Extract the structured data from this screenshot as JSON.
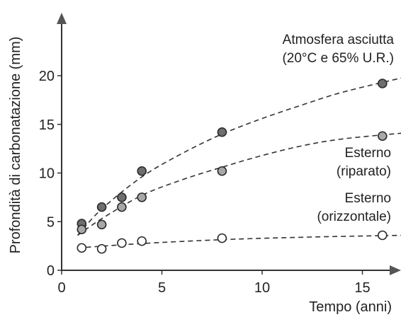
{
  "chart_data": {
    "type": "scatter",
    "title": "",
    "xlabel": "Tempo (anni)",
    "ylabel": "Profondità di carbonatazione (mm)",
    "xlim": [
      0,
      17
    ],
    "ylim": [
      0,
      23
    ],
    "xticks": [
      0,
      5,
      10,
      15
    ],
    "yticks": [
      0,
      5,
      10,
      15,
      20
    ],
    "grid": false,
    "legend": "none",
    "series": [
      {
        "name": "",
        "annotation": [
          "Atmosfera asciutta",
          "(20°C e 65% U.R.)"
        ],
        "marker": "filled-dark",
        "fill": "#6e6e6e",
        "x": [
          1,
          2,
          3,
          4,
          8,
          16
        ],
        "y": [
          4.8,
          6.5,
          7.5,
          10.2,
          14.2,
          19.2
        ],
        "trend_x": [
          0.8,
          2,
          4,
          6,
          8,
          10,
          12,
          14,
          17
        ],
        "trend_y": [
          3.6,
          6.3,
          9.6,
          12.0,
          14.0,
          15.6,
          17.0,
          18.3,
          19.8
        ]
      },
      {
        "name": "",
        "annotation": [
          "Esterno",
          "(riparato)"
        ],
        "marker": "filled-light",
        "fill": "#a8a8a8",
        "x": [
          1,
          2,
          3,
          4,
          8,
          16
        ],
        "y": [
          4.2,
          4.7,
          6.5,
          7.5,
          10.2,
          13.8
        ],
        "trend_x": [
          0.8,
          2,
          4,
          6,
          8,
          10,
          12,
          14,
          17
        ],
        "trend_y": [
          3.6,
          5.3,
          7.7,
          9.3,
          10.6,
          11.8,
          12.8,
          13.5,
          14.1
        ]
      },
      {
        "name": "",
        "annotation": [
          "Esterno",
          "(orizzontale)"
        ],
        "marker": "open",
        "fill": "#ffffff",
        "x": [
          1,
          2,
          3,
          4,
          8,
          16
        ],
        "y": [
          2.3,
          2.2,
          2.8,
          3.0,
          3.3,
          3.6
        ],
        "trend_x": [
          0.8,
          4,
          8,
          12,
          17
        ],
        "trend_y": [
          2.3,
          2.75,
          3.15,
          3.4,
          3.6
        ]
      }
    ]
  }
}
